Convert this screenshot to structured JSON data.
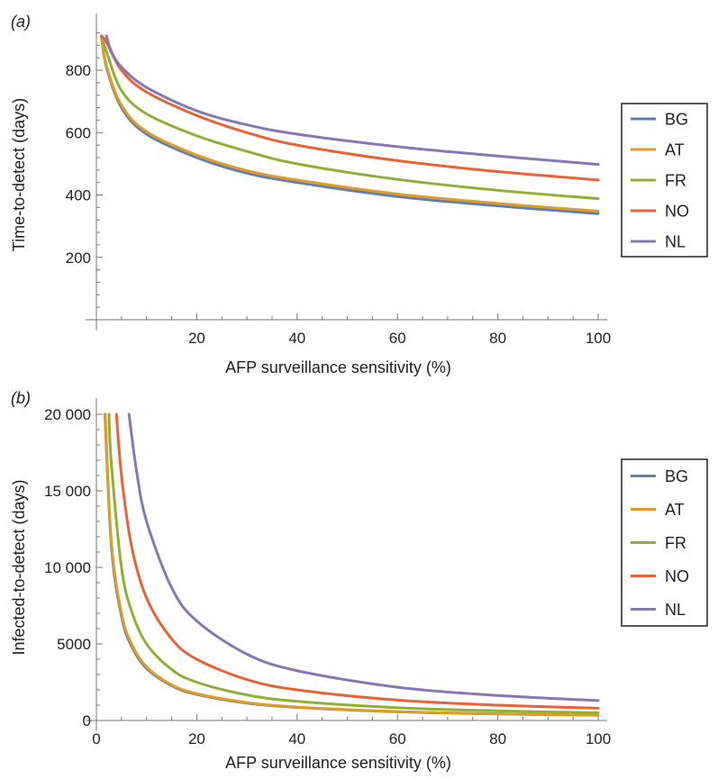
{
  "colors": {
    "BG": "#5e81b5",
    "AT": "#e19c24",
    "FR": "#8fb032",
    "NO": "#eb6235",
    "NL": "#8778b3"
  },
  "chart_data": [
    {
      "panel": "(a)",
      "type": "line",
      "xlabel": "AFP surveillance sensitivity (%)",
      "ylabel": "Time-to-detect (days)",
      "xlim": [
        0,
        100
      ],
      "ylim": [
        0,
        930
      ],
      "xticks": [
        20,
        40,
        60,
        80,
        100
      ],
      "yticks": [
        200,
        400,
        600,
        800
      ],
      "ytick_labels": [
        "200",
        "400",
        "600",
        "800"
      ],
      "legend_position": "right",
      "series": [
        {
          "name": "BG",
          "x": [
            1,
            2,
            5,
            10,
            20,
            30,
            40,
            60,
            80,
            100
          ],
          "values": [
            910,
            810,
            680,
            595,
            520,
            470,
            440,
            395,
            365,
            340
          ]
        },
        {
          "name": "AT",
          "x": [
            1,
            2,
            5,
            10,
            20,
            30,
            40,
            60,
            80,
            100
          ],
          "values": [
            910,
            815,
            688,
            603,
            528,
            478,
            448,
            403,
            373,
            348
          ]
        },
        {
          "name": "FR",
          "x": [
            1,
            2,
            5,
            10,
            20,
            30,
            40,
            60,
            80,
            100
          ],
          "values": [
            910,
            860,
            735,
            660,
            590,
            540,
            500,
            450,
            415,
            388
          ]
        },
        {
          "name": "NO",
          "x": [
            1,
            2,
            5,
            10,
            20,
            30,
            40,
            60,
            80,
            100
          ],
          "values": [
            910,
            890,
            800,
            730,
            655,
            600,
            560,
            510,
            475,
            448
          ]
        },
        {
          "name": "NL",
          "x": [
            2,
            3,
            5,
            10,
            20,
            30,
            40,
            60,
            80,
            100
          ],
          "values": [
            910,
            860,
            810,
            745,
            670,
            625,
            595,
            555,
            525,
            498
          ]
        }
      ]
    },
    {
      "panel": "(b)",
      "type": "line",
      "xlabel": "AFP surveillance sensitivity (%)",
      "ylabel": "Infected-to-detect (days)",
      "xlim": [
        0,
        100
      ],
      "ylim": [
        0,
        20000
      ],
      "xticks": [
        0,
        20,
        40,
        60,
        80,
        100
      ],
      "yticks": [
        0,
        5000,
        10000,
        15000,
        20000
      ],
      "ytick_labels": [
        "0",
        "5000",
        "10 000",
        "15 000",
        "20 000"
      ],
      "legend_position": "right",
      "series": [
        {
          "name": "BG",
          "x": [
            1.7,
            3,
            5,
            7,
            10,
            15,
            20,
            30,
            40,
            60,
            80,
            100
          ],
          "values": [
            20000,
            11300,
            6800,
            4850,
            3400,
            2270,
            1700,
            1130,
            850,
            567,
            425,
            340
          ]
        },
        {
          "name": "AT",
          "x": [
            1.75,
            3,
            5,
            7,
            10,
            15,
            20,
            30,
            40,
            60,
            80,
            100
          ],
          "values": [
            20000,
            11600,
            7000,
            5000,
            3500,
            2330,
            1750,
            1170,
            875,
            583,
            438,
            350
          ]
        },
        {
          "name": "FR",
          "x": [
            2.5,
            3,
            5,
            7,
            10,
            15,
            20,
            30,
            40,
            60,
            80,
            100
          ],
          "values": [
            20000,
            16700,
            10000,
            7150,
            5000,
            3330,
            2500,
            1670,
            1250,
            833,
            625,
            500
          ]
        },
        {
          "name": "NO",
          "x": [
            4,
            5,
            7,
            10,
            15,
            20,
            30,
            40,
            60,
            80,
            100
          ],
          "values": [
            20000,
            16000,
            11400,
            8000,
            5330,
            4000,
            2670,
            2000,
            1330,
            1000,
            800
          ]
        },
        {
          "name": "NL",
          "x": [
            6.5,
            8,
            10,
            15,
            20,
            30,
            40,
            60,
            80,
            100
          ],
          "values": [
            20000,
            16300,
            13000,
            8670,
            6500,
            4330,
            3250,
            2170,
            1630,
            1300
          ]
        }
      ]
    }
  ]
}
